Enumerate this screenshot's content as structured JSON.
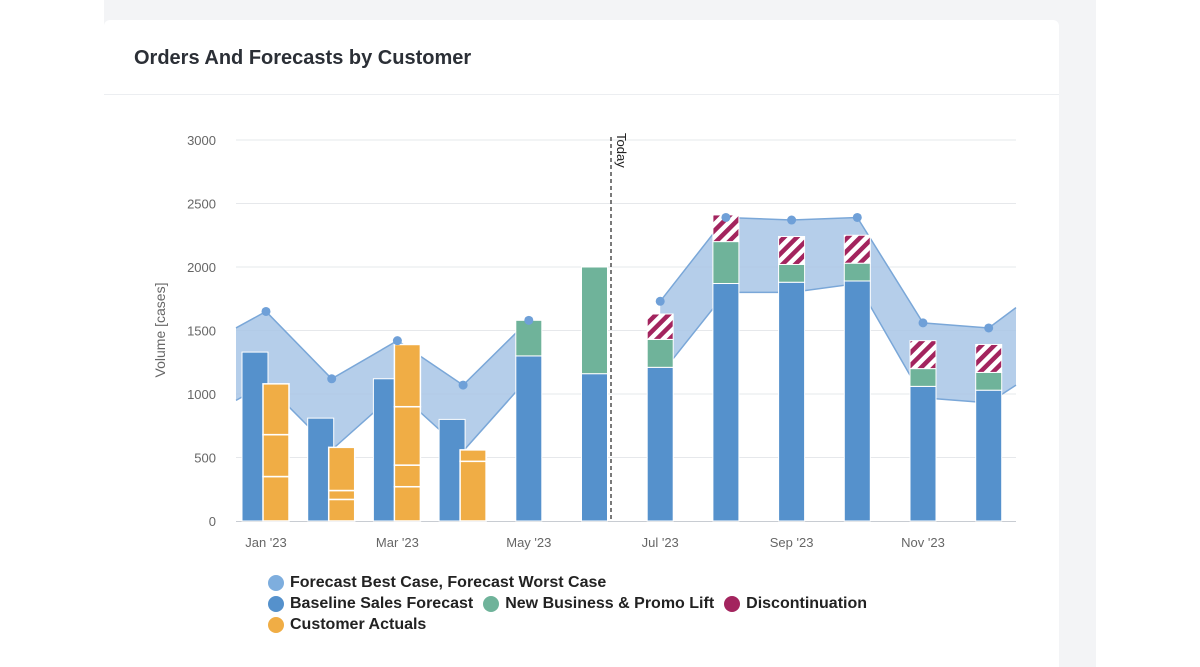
{
  "page": {
    "title": "Orders And Forecasts by Customer"
  },
  "colors": {
    "band": "#a8c6e6",
    "band_line": "#7aa7d8",
    "baseline": "#5591cc",
    "new_business": "#6fb39a",
    "discontinuation": "#a3245e",
    "actuals": "#f0ad45",
    "grid": "#e6e8eb",
    "axis_text": "#666666"
  },
  "chart_data": {
    "type": "bar",
    "title": "",
    "ylabel": "Volume [cases]",
    "ylim": [
      0,
      3000
    ],
    "yticks": [
      0,
      500,
      1000,
      1500,
      2000,
      2500,
      3000
    ],
    "x_tick_labels": [
      "Jan '23",
      "Mar '23",
      "May '23",
      "Jul '23",
      "Sep '23",
      "Nov '23"
    ],
    "today_label": "Today",
    "months": [
      "Jan '23",
      "Feb '23",
      "Mar '23",
      "Apr '23",
      "May '23",
      "Jun '23",
      "Jul '23",
      "Aug '23",
      "Sep '23",
      "Oct '23",
      "Nov '23",
      "Dec '23"
    ],
    "series": [
      {
        "name": "Forecast Best Case, Forecast Worst Case",
        "type": "arearange",
        "best": [
          1650,
          1120,
          1420,
          1070,
          1580,
          null,
          1730,
          2390,
          2370,
          2390,
          1560,
          1520
        ],
        "worst": [
          1080,
          560,
          1020,
          550,
          1130,
          null,
          1150,
          1800,
          1800,
          1870,
          970,
          930
        ],
        "edge_start": [
          1520,
          950
        ],
        "edge_end": [
          1680,
          1070
        ]
      },
      {
        "name": "Baseline Sales Forecast",
        "values": [
          1330,
          810,
          1120,
          800,
          1300,
          1160,
          1210,
          1870,
          1880,
          1890,
          1060,
          1030
        ]
      },
      {
        "name": "New Business & Promo Lift",
        "values": [
          0,
          0,
          0,
          0,
          280,
          840,
          220,
          330,
          140,
          140,
          140,
          140
        ]
      },
      {
        "name": "Discontinuation",
        "values": [
          0,
          0,
          0,
          0,
          0,
          0,
          200,
          210,
          220,
          220,
          220,
          220
        ]
      },
      {
        "name": "Customer Actuals",
        "values": [
          1080,
          580,
          1390,
          560,
          null,
          null,
          null,
          null,
          null,
          null,
          null,
          null
        ]
      }
    ],
    "actuals_segments": [
      [
        350,
        330,
        400
      ],
      [
        170,
        70,
        340
      ],
      [
        270,
        170,
        460,
        490
      ],
      [
        470,
        90
      ]
    ],
    "legend": {
      "rows": [
        [
          "Forecast Best Case, Forecast Worst Case"
        ],
        [
          "Baseline Sales Forecast",
          "New Business & Promo Lift",
          "Discontinuation"
        ],
        [
          "Customer Actuals"
        ]
      ],
      "placement": "bottom-left"
    }
  }
}
